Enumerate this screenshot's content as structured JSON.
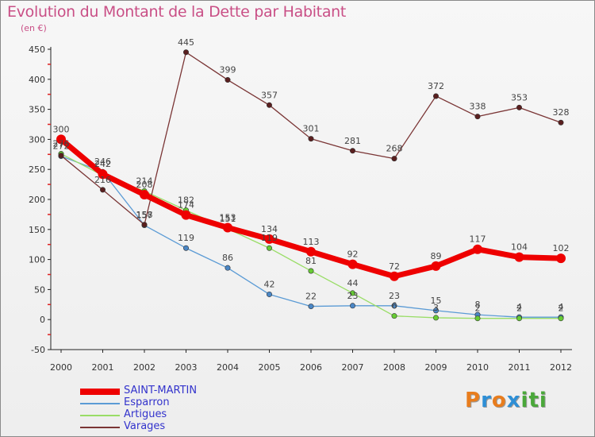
{
  "header": {
    "title": "Evolution du Montant de la Dette par Habitant",
    "unit": "(en €)"
  },
  "logo": {
    "text": "Proxiti",
    "colors": [
      "#e87d1e",
      "#2e8fd6",
      "#e87d1e",
      "#2e8fd6",
      "#4aa83a",
      "#4aa83a",
      "#4aa83a"
    ]
  },
  "chart_data": {
    "type": "line",
    "title": "Evolution du Montant de la Dette par Habitant",
    "ylabel": "(en €)",
    "x": [
      "2000",
      "2001",
      "2002",
      "2003",
      "2004",
      "2005",
      "2006",
      "2007",
      "2008",
      "2009",
      "2010",
      "2011",
      "2012"
    ],
    "ylim": [
      -50,
      450
    ],
    "yticks": [
      -50,
      0,
      50,
      100,
      150,
      200,
      250,
      300,
      350,
      400,
      450
    ],
    "grid": false,
    "legend_position": "bottom-left",
    "series": [
      {
        "name": "SAINT-MARTIN",
        "color": "#ee0000",
        "marker_color": "#ee0000",
        "line_width": 7,
        "marker_radius": 6,
        "values": [
          300,
          242,
          208,
          174,
          153,
          134,
          113,
          92,
          72,
          89,
          117,
          104,
          102
        ],
        "labels": [
          "300",
          "242",
          "208",
          "174",
          "153",
          "134",
          "113",
          "92",
          "72",
          "89",
          "117",
          "104",
          "102"
        ]
      },
      {
        "name": "Esparron",
        "color": "#5b9bd5",
        "marker_color": "#4a86c5",
        "line_width": 1.3,
        "marker_radius": 3.2,
        "values": [
          272,
          246,
          157,
          119,
          86,
          42,
          22,
          23,
          23,
          15,
          8,
          4,
          4
        ],
        "labels": [
          "272",
          "246",
          "157",
          "119",
          "86",
          "42",
          "22",
          "23",
          "23",
          "15",
          "8",
          "4",
          "4"
        ]
      },
      {
        "name": "Artigues",
        "color": "#99dd66",
        "marker_color": "#66cc33",
        "line_width": 1.3,
        "marker_radius": 3.2,
        "values": [
          276,
          240,
          214,
          182,
          151,
          119,
          81,
          44,
          6,
          3,
          2,
          2,
          2
        ],
        "labels": [
          "276",
          "",
          "214",
          "182",
          "151",
          "119",
          "81",
          "44",
          "6",
          "3",
          "2",
          "2",
          "2"
        ]
      },
      {
        "name": "Varages",
        "color": "#7a3535",
        "marker_color": "#5a1f1f",
        "line_width": 1.3,
        "marker_radius": 3.2,
        "values": [
          273,
          216,
          158,
          445,
          399,
          357,
          301,
          281,
          268,
          372,
          338,
          353,
          328
        ],
        "labels": [
          "",
          "216",
          "158",
          "445",
          "399",
          "357",
          "301",
          "281",
          "268",
          "372",
          "338",
          "353",
          "328"
        ]
      }
    ]
  }
}
